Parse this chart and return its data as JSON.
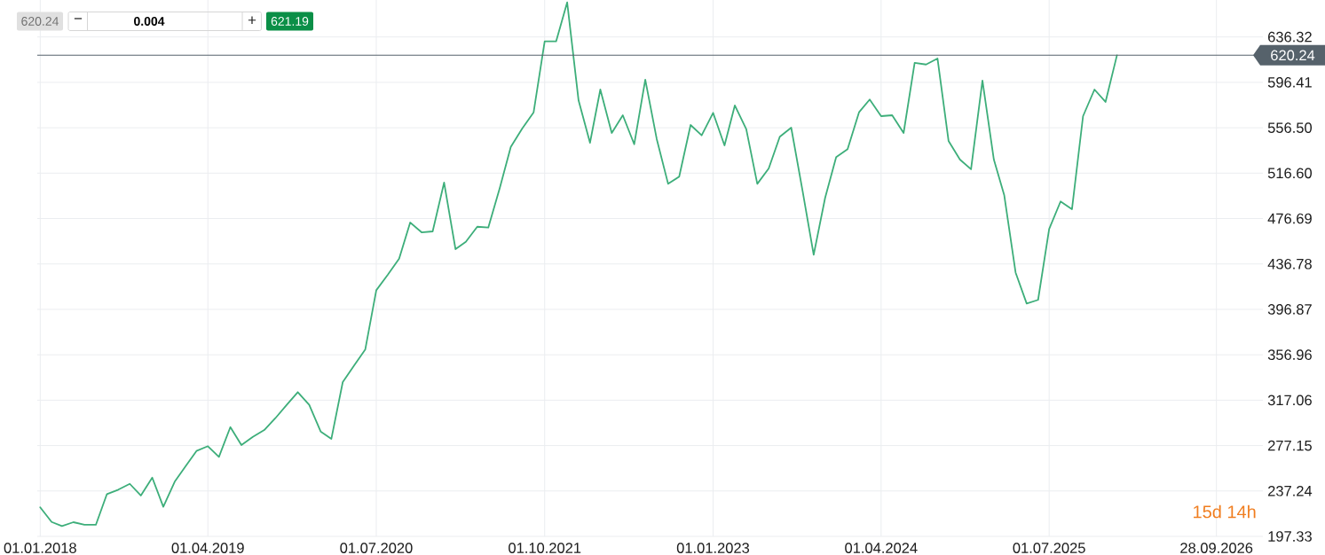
{
  "chart_data": {
    "type": "line",
    "x": [
      "2018-01",
      "2018-02",
      "2018-03",
      "2018-04",
      "2018-05",
      "2018-06",
      "2018-07",
      "2018-08",
      "2018-09",
      "2018-10",
      "2018-11",
      "2018-12",
      "2019-01",
      "2019-02",
      "2019-03",
      "2019-04",
      "2019-05",
      "2019-06",
      "2019-07",
      "2019-08",
      "2019-09",
      "2019-10",
      "2019-11",
      "2019-12",
      "2020-01",
      "2020-02",
      "2020-03",
      "2020-04",
      "2020-05",
      "2020-06",
      "2020-07",
      "2020-08",
      "2020-09",
      "2020-10",
      "2020-11",
      "2020-12",
      "2021-01",
      "2021-02",
      "2021-03",
      "2021-04",
      "2021-05",
      "2021-06",
      "2021-07",
      "2021-08",
      "2021-09",
      "2021-10",
      "2021-11",
      "2021-12",
      "2022-01",
      "2022-02",
      "2022-03",
      "2022-04",
      "2022-05",
      "2022-06",
      "2022-07",
      "2022-08",
      "2022-09",
      "2022-10",
      "2022-11",
      "2022-12",
      "2023-01",
      "2023-02",
      "2023-03",
      "2023-04",
      "2023-05",
      "2023-06",
      "2023-07",
      "2023-08",
      "2023-09",
      "2023-10",
      "2023-11",
      "2023-12",
      "2024-01",
      "2024-02",
      "2024-03",
      "2024-04",
      "2024-05",
      "2024-06",
      "2024-07",
      "2024-08",
      "2024-09",
      "2024-10",
      "2024-11",
      "2024-12",
      "2025-01",
      "2025-02",
      "2025-03",
      "2025-04",
      "2025-05",
      "2025-06",
      "2025-07",
      "2025-08",
      "2025-09",
      "2025-10",
      "2025-11",
      "2025-12",
      "2026-01"
    ],
    "series": [
      {
        "color": "#3dae7a",
        "values": [
          222.8,
          210.0,
          206.4,
          209.8,
          207.5,
          207.5,
          234.5,
          238.4,
          243.5,
          233.2,
          249.0,
          223.3,
          245.4,
          259.7,
          272.4,
          276.6,
          267.2,
          293.4,
          277.6,
          284.8,
          290.8,
          301.2,
          312.9,
          324.1,
          312.9,
          289.5,
          283.0,
          332.9,
          347.2,
          361.5,
          413.7,
          427.2,
          441.5,
          473.2,
          464.6,
          465.4,
          508.3,
          449.8,
          456.3,
          469.5,
          468.8,
          503.4,
          539.7,
          555.8,
          570.1,
          632.4,
          632.4,
          666.7,
          580.5,
          543.3,
          590.1,
          551.9,
          567.5,
          542.0,
          598.7,
          546.7,
          507.2,
          513.5,
          558.9,
          549.8,
          569.6,
          541.0,
          576.1,
          555.3,
          507.2,
          520.7,
          548.6,
          556.6,
          500.7,
          444.9,
          494.8,
          530.6,
          537.6,
          570.1,
          581.3,
          566.7,
          567.5,
          551.9,
          613.5,
          612.1,
          617.4,
          544.9,
          528.5,
          520.0,
          597.9,
          528.5,
          497.4,
          429.2,
          402.0,
          405.2,
          467.5,
          491.7,
          484.9,
          566.7,
          590.1,
          579.2,
          620.2
        ]
      }
    ],
    "xlim": [
      "2017-12-24",
      "2027-02-01"
    ],
    "xticks": [
      {
        "value": "2018-01-01",
        "label": "01.01.2018"
      },
      {
        "value": "2019-04-01",
        "label": "01.04.2019"
      },
      {
        "value": "2020-07-01",
        "label": "01.07.2020"
      },
      {
        "value": "2021-10-01",
        "label": "01.10.2021"
      },
      {
        "value": "2023-01-01",
        "label": "01.01.2023"
      },
      {
        "value": "2024-04-01",
        "label": "01.04.2024"
      },
      {
        "value": "2025-07-01",
        "label": "01.07.2025"
      },
      {
        "value": "2026-09-28",
        "label": "28.09.2026"
      }
    ],
    "ylim": [
      197.33,
      668.8
    ],
    "yticks": [
      197.33,
      237.24,
      277.15,
      317.06,
      356.96,
      396.87,
      436.78,
      476.69,
      {
        "value": 516.6,
        "label": "516.60"
      },
      {
        "value": 556.5,
        "label": "556.50"
      },
      596.41,
      636.32
    ],
    "grid": true,
    "ref_lines": [
      {
        "axis": "y",
        "value": 620.24,
        "label": "620.24",
        "color": "#56626b"
      }
    ],
    "annotations": [
      "620.24",
      "−",
      "0.004",
      "+",
      "621.19",
      "15d 14h"
    ]
  }
}
